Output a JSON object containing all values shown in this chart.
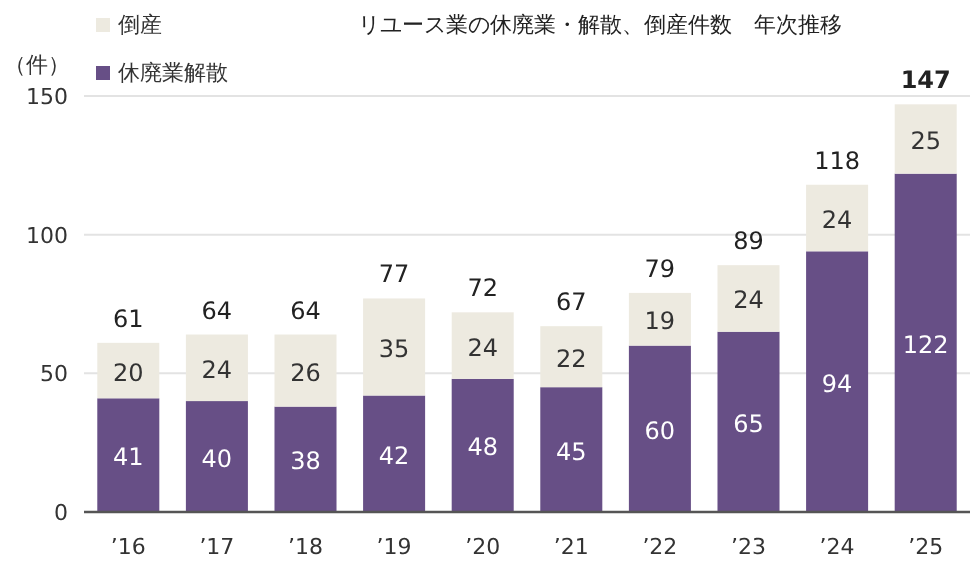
{
  "chart_data": {
    "type": "bar",
    "title": "リユース業の休廃業・解散、倒産件数　年次推移",
    "ylabel": "（件）",
    "categories": [
      "’16",
      "’17",
      "’18",
      "’19",
      "’20",
      "’21",
      "’22",
      "’23",
      "’24",
      "’25"
    ],
    "stacked": true,
    "series": [
      {
        "name": "休廃業解散",
        "color": "#674f86",
        "values": [
          41,
          40,
          38,
          42,
          48,
          45,
          60,
          65,
          94,
          122
        ]
      },
      {
        "name": "倒産",
        "color": "#edeae0",
        "values": [
          20,
          24,
          26,
          35,
          24,
          22,
          19,
          24,
          24,
          25
        ]
      }
    ],
    "totals": [
      "61",
      "64",
      "64",
      "77",
      "72",
      "67",
      "79",
      "89",
      "118",
      "147"
    ],
    "data_labels": true,
    "ylim": [
      0,
      150
    ],
    "yticks": [
      0,
      50,
      100,
      150
    ],
    "grid": "y",
    "legend": "top left"
  }
}
